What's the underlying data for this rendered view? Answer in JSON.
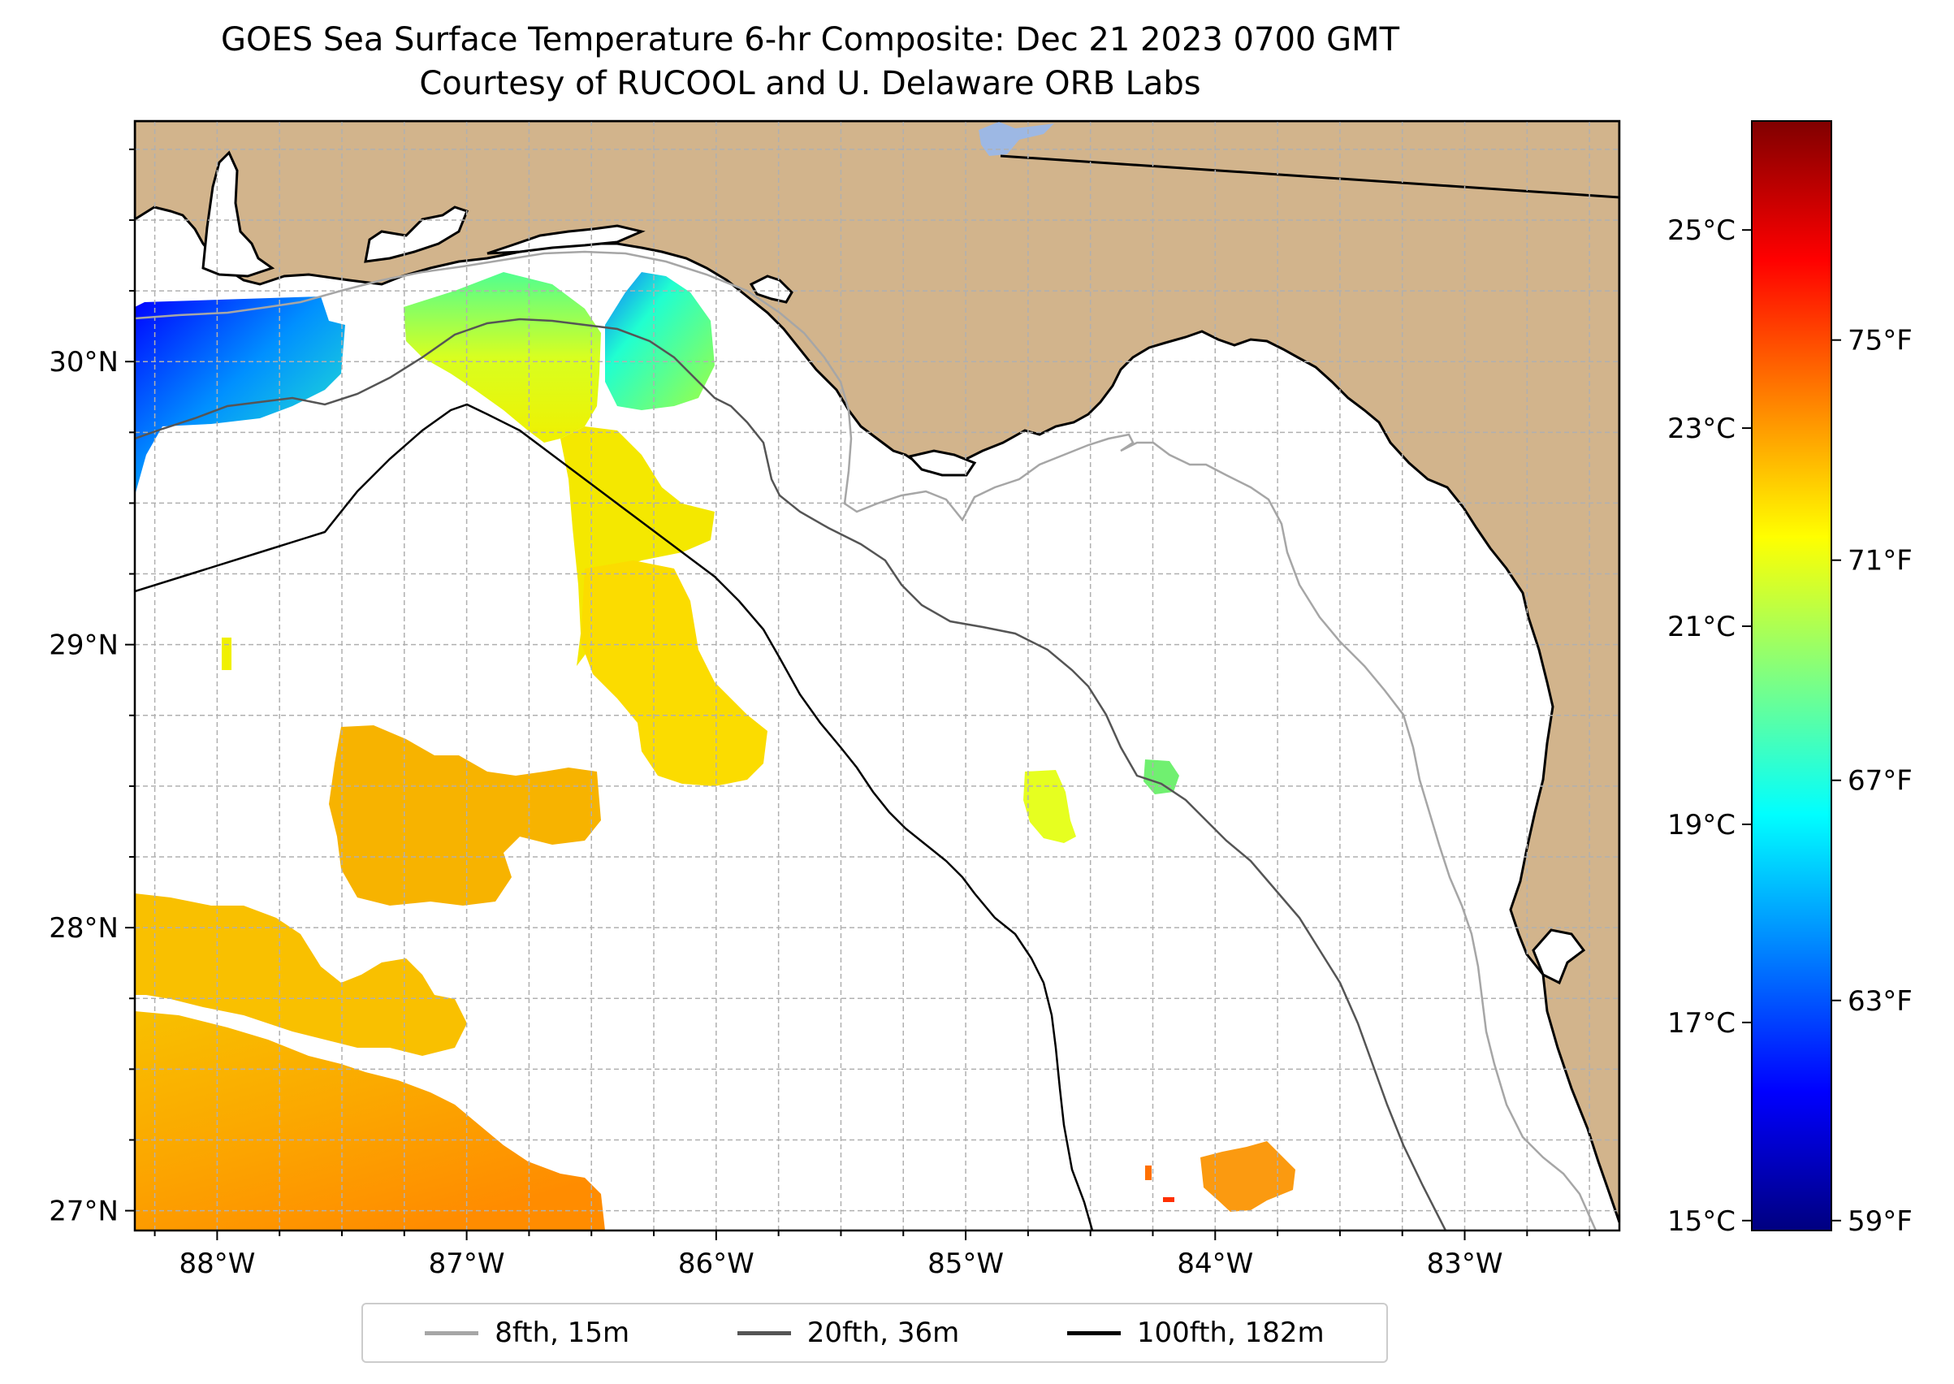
{
  "title": "GOES Sea Surface Temperature 6-hr Composite: Dec 21 2023 0700 GMT",
  "subtitle": "Courtesy of RUCOOL and U. Delaware ORB Labs",
  "colors": {
    "land": "#d2b48c",
    "water": "#ffffff",
    "grid": "#b0b0b0",
    "lake": "#9db8e4"
  },
  "chart_data": {
    "type": "heatmap",
    "map_extent": {
      "lon": [
        -88.33,
        -82.38
      ],
      "lat": [
        26.93,
        30.85
      ]
    },
    "x_ticks": [
      {
        "lon": -88,
        "label": "88°W"
      },
      {
        "lon": -87,
        "label": "87°W"
      },
      {
        "lon": -86,
        "label": "86°W"
      },
      {
        "lon": -85,
        "label": "85°W"
      },
      {
        "lon": -84,
        "label": "84°W"
      },
      {
        "lon": -83,
        "label": "83°W"
      }
    ],
    "y_ticks": [
      {
        "lat": 27,
        "label": "27°N"
      },
      {
        "lat": 28,
        "label": "28°N"
      },
      {
        "lat": 29,
        "label": "29°N"
      },
      {
        "lat": 30,
        "label": "30°N"
      }
    ],
    "colorbar": {
      "range_c": [
        14.9,
        26.1
      ],
      "celsius_ticks": [
        {
          "value": 15,
          "label": "15°C"
        },
        {
          "value": 17,
          "label": "17°C"
        },
        {
          "value": 19,
          "label": "19°C"
        },
        {
          "value": 21,
          "label": "21°C"
        },
        {
          "value": 23,
          "label": "23°C"
        },
        {
          "value": 25,
          "label": "25°C"
        }
      ],
      "fahrenheit_ticks": [
        {
          "value": 59,
          "label": "59°F"
        },
        {
          "value": 63,
          "label": "63°F"
        },
        {
          "value": 67,
          "label": "67°F"
        },
        {
          "value": 71,
          "label": "71°F"
        },
        {
          "value": 75,
          "label": "75°F"
        }
      ],
      "colormap": [
        "#000080",
        "#0000ff",
        "#0080ff",
        "#00ffff",
        "#80ff80",
        "#ffff00",
        "#ff8000",
        "#ff0000",
        "#800000"
      ]
    },
    "legend": [
      {
        "label": "8fth, 15m",
        "color": "#a6a6a6"
      },
      {
        "label": "20fth, 36m",
        "color": "#555555"
      },
      {
        "label": "100fth, 182m",
        "color": "#000000"
      }
    ],
    "sst_regions": [
      {
        "name": "northwest coastal cold patch",
        "min_c": 15.8,
        "max_c": 19.8
      },
      {
        "name": "mobile bay offshore patch",
        "min_c": 19.5,
        "max_c": 21.8
      },
      {
        "name": "destin offshore patch",
        "min_c": 18.5,
        "max_c": 21.6
      },
      {
        "name": "desoto canyon tongue",
        "min_c": 21.8,
        "max_c": 22.2
      },
      {
        "name": "central shelf patch",
        "min_c": 22.8,
        "max_c": 23.2
      },
      {
        "name": "southwest warm patch",
        "min_c": 22.4,
        "max_c": 23.8
      },
      {
        "name": "big bend patch",
        "min_c": 20.5,
        "max_c": 21.8
      },
      {
        "name": "southeast warm patch",
        "min_c": 23.5,
        "max_c": 24.0
      }
    ]
  }
}
